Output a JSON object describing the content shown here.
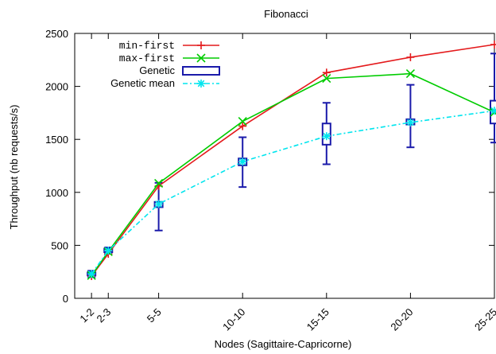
{
  "chart_data": {
    "type": "line",
    "title": "Fibonacci",
    "xlabel": "Nodes (Sagittaire-Capricorne)",
    "ylabel": "Throughput (nb requests/s)",
    "ylim": [
      0,
      2500
    ],
    "yticks": [
      0,
      500,
      1000,
      1500,
      2000,
      2500
    ],
    "xlim": [
      0,
      50
    ],
    "x": [
      2,
      4,
      10,
      20,
      30,
      40,
      50
    ],
    "categories": [
      "1-2",
      "2-3",
      "5-5",
      "10-10",
      "15-15",
      "20-20",
      "25-25"
    ],
    "grid": false,
    "legend_position": "top-left",
    "series": [
      {
        "name": "min-first",
        "color": "#e41a1c",
        "marker": "plus",
        "values": [
          210,
          420,
          1060,
          1625,
          2130,
          2275,
          2395
        ]
      },
      {
        "name": "max-first",
        "color": "#00cc00",
        "marker": "cross",
        "values": [
          215,
          440,
          1085,
          1670,
          2075,
          2120,
          1755
        ]
      },
      {
        "name": "Genetic mean",
        "color": "#00e5ee",
        "marker": "star",
        "values": [
          230,
          450,
          890,
          1290,
          1530,
          1660,
          1770
        ]
      }
    ],
    "boxplot": {
      "name": "Genetic",
      "color": "#1a1aaa",
      "boxes": [
        {
          "low": 200,
          "q1": 215,
          "q3": 245,
          "high": 260
        },
        {
          "low": 420,
          "q1": 435,
          "q3": 470,
          "high": 480
        },
        {
          "low": 640,
          "q1": 860,
          "q3": 910,
          "high": 1090
        },
        {
          "low": 1050,
          "q1": 1255,
          "q3": 1320,
          "high": 1520
        },
        {
          "low": 1265,
          "q1": 1450,
          "q3": 1650,
          "high": 1845
        },
        {
          "low": 1425,
          "q1": 1640,
          "q3": 1690,
          "high": 2015
        },
        {
          "low": 1470,
          "q1": 1650,
          "q3": 1865,
          "high": 2310
        }
      ]
    }
  }
}
